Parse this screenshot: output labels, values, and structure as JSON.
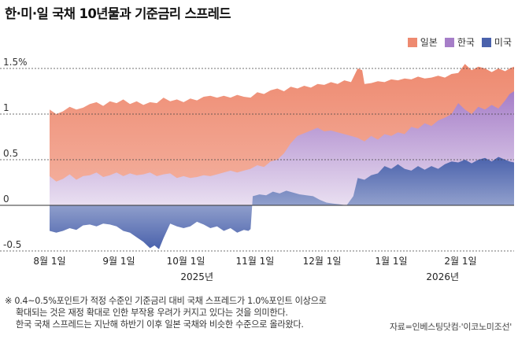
{
  "title": "한·미·일 국채 10년물과 기준금리 스프레드",
  "chart_data": {
    "type": "area",
    "title": "한·미·일 국채 10년물과 기준금리 스프레드",
    "unit": "%p",
    "ylim": [
      -0.55,
      1.65
    ],
    "yticks": [
      {
        "value": 1.5,
        "label": "1.5%"
      },
      {
        "value": 1,
        "label": "1"
      },
      {
        "value": 0.5,
        "label": "0.5"
      },
      {
        "value": 0,
        "label": "0"
      },
      {
        "value": -0.5,
        "label": "-0.5"
      }
    ],
    "x_range_days": [
      0,
      208
    ],
    "x_ticks": [
      {
        "day": 0,
        "label": "8월 1일"
      },
      {
        "day": 31,
        "label": "9월 1일"
      },
      {
        "day": 61,
        "label": "10월 1일"
      },
      {
        "day": 92,
        "label": "11월 1일"
      },
      {
        "day": 122,
        "label": "12월 1일"
      },
      {
        "day": 153,
        "label": "1월 1일"
      },
      {
        "day": 184,
        "label": "2월 1일"
      }
    ],
    "year_labels": [
      {
        "day": 66,
        "label": "2025년"
      },
      {
        "day": 176,
        "label": "2026년"
      }
    ],
    "series": [
      {
        "name": "일본",
        "color": "#ee8a70",
        "x": [
          0,
          3,
          6,
          9,
          12,
          15,
          18,
          21,
          24,
          27,
          30,
          33,
          36,
          39,
          42,
          45,
          48,
          51,
          54,
          57,
          60,
          63,
          66,
          69,
          72,
          75,
          78,
          81,
          84,
          87,
          90,
          93,
          96,
          99,
          102,
          105,
          108,
          111,
          114,
          117,
          120,
          123,
          126,
          129,
          132,
          135,
          138,
          140,
          141,
          144,
          147,
          150,
          153,
          156,
          159,
          162,
          165,
          168,
          171,
          174,
          177,
          180,
          183,
          186,
          189,
          192,
          195,
          198,
          201,
          204,
          206,
          208
        ],
        "values": [
          1.05,
          1.0,
          1.03,
          1.08,
          1.05,
          1.07,
          1.11,
          1.13,
          1.09,
          1.14,
          1.12,
          1.16,
          1.11,
          1.14,
          1.1,
          1.13,
          1.12,
          1.18,
          1.14,
          1.16,
          1.13,
          1.17,
          1.15,
          1.19,
          1.2,
          1.18,
          1.2,
          1.18,
          1.21,
          1.19,
          1.18,
          1.24,
          1.22,
          1.26,
          1.28,
          1.25,
          1.3,
          1.28,
          1.31,
          1.29,
          1.33,
          1.32,
          1.35,
          1.33,
          1.37,
          1.35,
          1.5,
          1.48,
          1.33,
          1.34,
          1.36,
          1.35,
          1.38,
          1.37,
          1.39,
          1.38,
          1.41,
          1.39,
          1.4,
          1.42,
          1.4,
          1.44,
          1.45,
          1.55,
          1.48,
          1.52,
          1.5,
          1.46,
          1.5,
          1.47,
          1.5,
          1.52
        ]
      },
      {
        "name": "한국",
        "color": "#a67ec8",
        "x": [
          0,
          3,
          6,
          9,
          12,
          15,
          18,
          21,
          24,
          27,
          30,
          33,
          36,
          39,
          42,
          45,
          48,
          51,
          54,
          57,
          60,
          63,
          66,
          69,
          72,
          75,
          78,
          81,
          84,
          87,
          90,
          93,
          96,
          99,
          102,
          105,
          108,
          111,
          114,
          117,
          120,
          123,
          126,
          129,
          132,
          135,
          138,
          141,
          144,
          147,
          150,
          153,
          156,
          159,
          162,
          165,
          168,
          171,
          174,
          177,
          180,
          183,
          186,
          189,
          192,
          195,
          198,
          201,
          204,
          206,
          208
        ],
        "values": [
          0.32,
          0.26,
          0.29,
          0.34,
          0.28,
          0.32,
          0.33,
          0.36,
          0.31,
          0.33,
          0.36,
          0.32,
          0.35,
          0.33,
          0.34,
          0.36,
          0.32,
          0.34,
          0.35,
          0.3,
          0.32,
          0.3,
          0.31,
          0.33,
          0.32,
          0.34,
          0.36,
          0.38,
          0.36,
          0.38,
          0.4,
          0.44,
          0.42,
          0.48,
          0.5,
          0.57,
          0.68,
          0.76,
          0.79,
          0.82,
          0.85,
          0.81,
          0.82,
          0.8,
          0.78,
          0.76,
          0.74,
          0.7,
          0.76,
          0.72,
          0.78,
          0.76,
          0.8,
          0.78,
          0.86,
          0.84,
          0.9,
          0.87,
          0.93,
          0.96,
          1.0,
          1.12,
          1.05,
          1.0,
          1.08,
          1.05,
          1.1,
          1.06,
          1.15,
          1.22,
          1.25
        ]
      },
      {
        "name": "미국",
        "color": "#4a62ac",
        "x": [
          0,
          3,
          6,
          9,
          12,
          15,
          18,
          21,
          24,
          27,
          30,
          33,
          36,
          39,
          42,
          45,
          47,
          49,
          51,
          54,
          57,
          60,
          63,
          66,
          69,
          72,
          75,
          78,
          81,
          84,
          87,
          89,
          90,
          91,
          94,
          97,
          100,
          103,
          106,
          109,
          112,
          115,
          118,
          121,
          124,
          127,
          130,
          133,
          136,
          138,
          141,
          144,
          147,
          150,
          153,
          156,
          159,
          162,
          165,
          168,
          171,
          174,
          177,
          180,
          183,
          186,
          189,
          192,
          195,
          198,
          201,
          204,
          206,
          208
        ],
        "values": [
          -0.28,
          -0.3,
          -0.28,
          -0.25,
          -0.27,
          -0.22,
          -0.21,
          -0.23,
          -0.2,
          -0.21,
          -0.23,
          -0.28,
          -0.3,
          -0.35,
          -0.4,
          -0.47,
          -0.44,
          -0.48,
          -0.36,
          -0.2,
          -0.23,
          -0.25,
          -0.23,
          -0.18,
          -0.21,
          -0.25,
          -0.23,
          -0.28,
          -0.25,
          -0.3,
          -0.27,
          -0.28,
          -0.26,
          0.1,
          0.12,
          0.11,
          0.15,
          0.13,
          0.16,
          0.14,
          0.12,
          0.11,
          0.1,
          0.06,
          0.03,
          0.02,
          0.01,
          0.0,
          0.1,
          0.3,
          0.28,
          0.33,
          0.35,
          0.43,
          0.4,
          0.45,
          0.4,
          0.38,
          0.43,
          0.39,
          0.43,
          0.4,
          0.45,
          0.48,
          0.47,
          0.5,
          0.46,
          0.5,
          0.52,
          0.48,
          0.53,
          0.5,
          0.48,
          0.47
        ]
      }
    ]
  },
  "notes": [
    "※ 0.4~0.5%포인트가 적정 수준인 기준금리 대비 국채 스프레드가 1.0%포인트 이상으로",
    "확대되는 것은 재정 확대로 인한 부작용 우려가 커지고 있다는 것을 의미한다.",
    "한국 국채 스프레드는 지난해 하반기 이후 일본 국채와 비슷한 수준으로 올라왔다."
  ],
  "source": "자료=인베스팅닷컴·'이코노미조선'"
}
